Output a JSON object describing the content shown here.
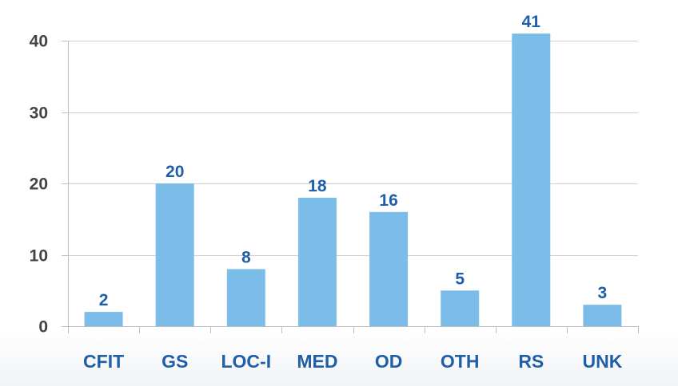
{
  "chart_data": {
    "type": "bar",
    "categories": [
      "CFIT",
      "GS",
      "LOC-I",
      "MED",
      "OD",
      "OTH",
      "RS",
      "UNK"
    ],
    "values": [
      2,
      20,
      8,
      18,
      16,
      5,
      41,
      3
    ],
    "ylim": [
      0,
      40
    ],
    "yticks": [
      0,
      10,
      20,
      30,
      40
    ],
    "grid": true,
    "data_labels": true
  },
  "colors": {
    "bar": "#7bbde8",
    "label": "#1f5ea8",
    "axis": "#bfbfbf",
    "grid": "#cfcfcf",
    "tick_text": "#444444"
  }
}
